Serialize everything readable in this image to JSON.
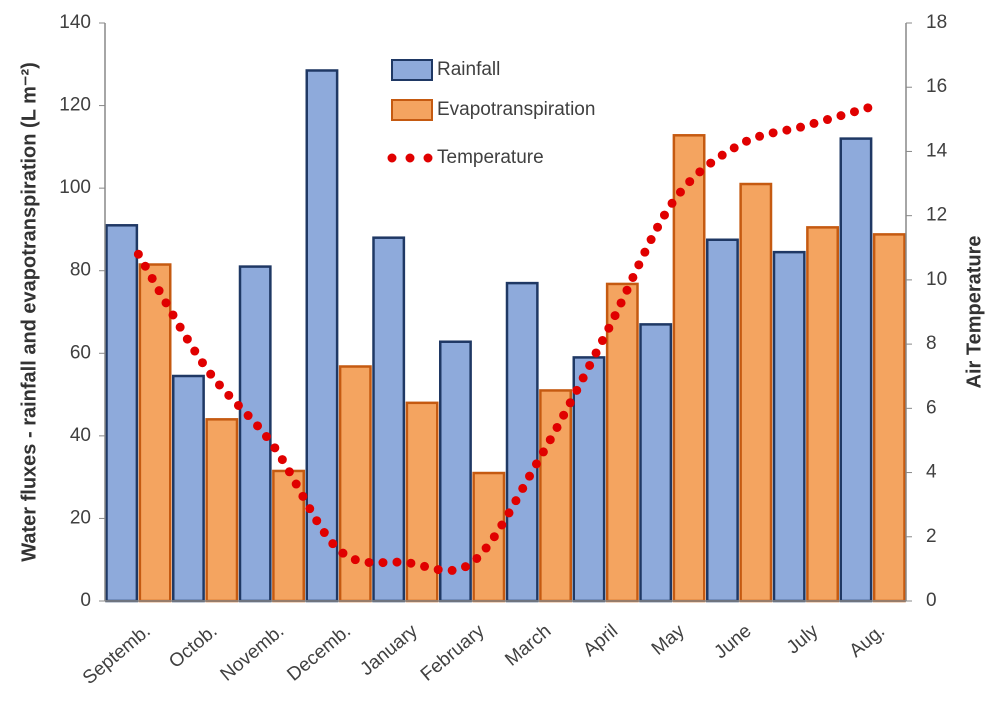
{
  "chart_data": {
    "type": "bar",
    "categories": [
      "Septemb.",
      "Octob.",
      "Novemb.",
      "Decemb.",
      "January",
      "February",
      "March",
      "April",
      "May",
      "June",
      "July",
      "Aug."
    ],
    "y_label": "Water fluxes - rainfall and evapotranspiration (L m⁻²)",
    "y2_label": "Air Temperature",
    "ylim": [
      0,
      140
    ],
    "yticks": [
      0,
      20,
      40,
      60,
      80,
      100,
      120,
      140
    ],
    "y2lim": [
      0,
      18
    ],
    "y2ticks": [
      0,
      2,
      4,
      6,
      8,
      10,
      12,
      14,
      16,
      18
    ],
    "series": [
      {
        "name": "Rainfall",
        "type": "bar",
        "color": "#8eaadb",
        "edge": "#1f3864",
        "values": [
          91,
          54.5,
          81,
          128.5,
          88,
          62.8,
          77,
          59,
          67,
          87.5,
          84.5,
          112
        ]
      },
      {
        "name": "Evapotranspiration",
        "type": "bar",
        "color": "#f4a460",
        "edge": "#c55a11",
        "values": [
          81.5,
          44,
          31.5,
          56.8,
          48,
          31,
          51,
          76.8,
          112.8,
          101,
          90.5,
          88.8
        ]
      },
      {
        "name": "Temperature",
        "type": "line",
        "axis": "y2",
        "color": "#e00000",
        "values": [
          10.8,
          7.3,
          4.9,
          1.6,
          1.2,
          1.2,
          4.4,
          8.3,
          12.4,
          14.2,
          14.8,
          15.4
        ]
      }
    ]
  }
}
